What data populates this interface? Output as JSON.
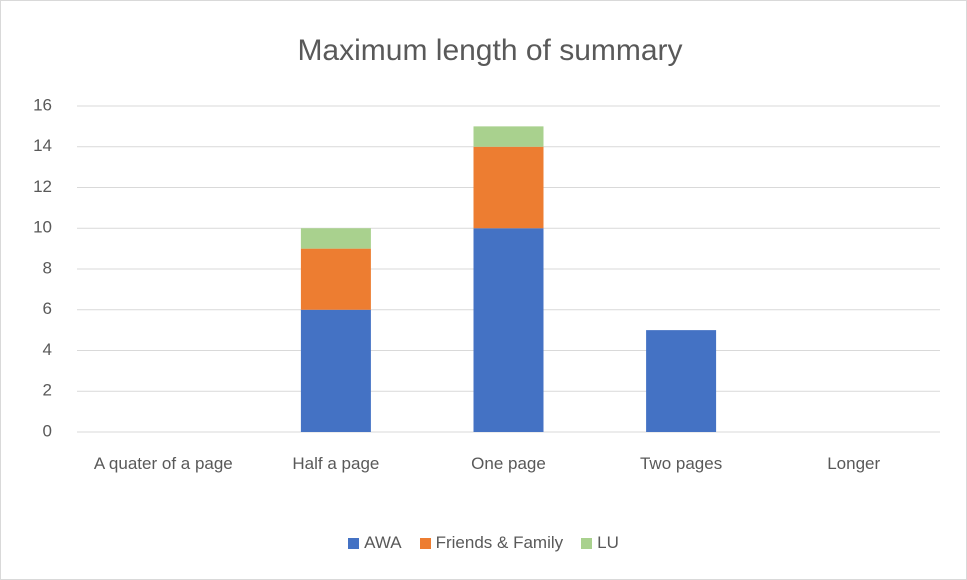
{
  "chart_data": {
    "type": "stacked_bar",
    "title": "Maximum length of summary",
    "categories": [
      "A quater of a page",
      "Half a page",
      "One page",
      "Two pages",
      "Longer"
    ],
    "series": [
      {
        "name": "AWA",
        "color": "#4472c4",
        "values": [
          0,
          6,
          10,
          5,
          0
        ]
      },
      {
        "name": "Friends & Family",
        "color": "#ed7d31",
        "values": [
          0,
          3,
          4,
          0,
          0
        ]
      },
      {
        "name": "LU",
        "color": "#a9d18e",
        "values": [
          0,
          1,
          1,
          0,
          0
        ]
      }
    ],
    "ylim": [
      0,
      16
    ],
    "yticks": [
      0,
      2,
      4,
      6,
      8,
      10,
      12,
      14,
      16
    ],
    "grid": true,
    "legend": "bottom"
  }
}
